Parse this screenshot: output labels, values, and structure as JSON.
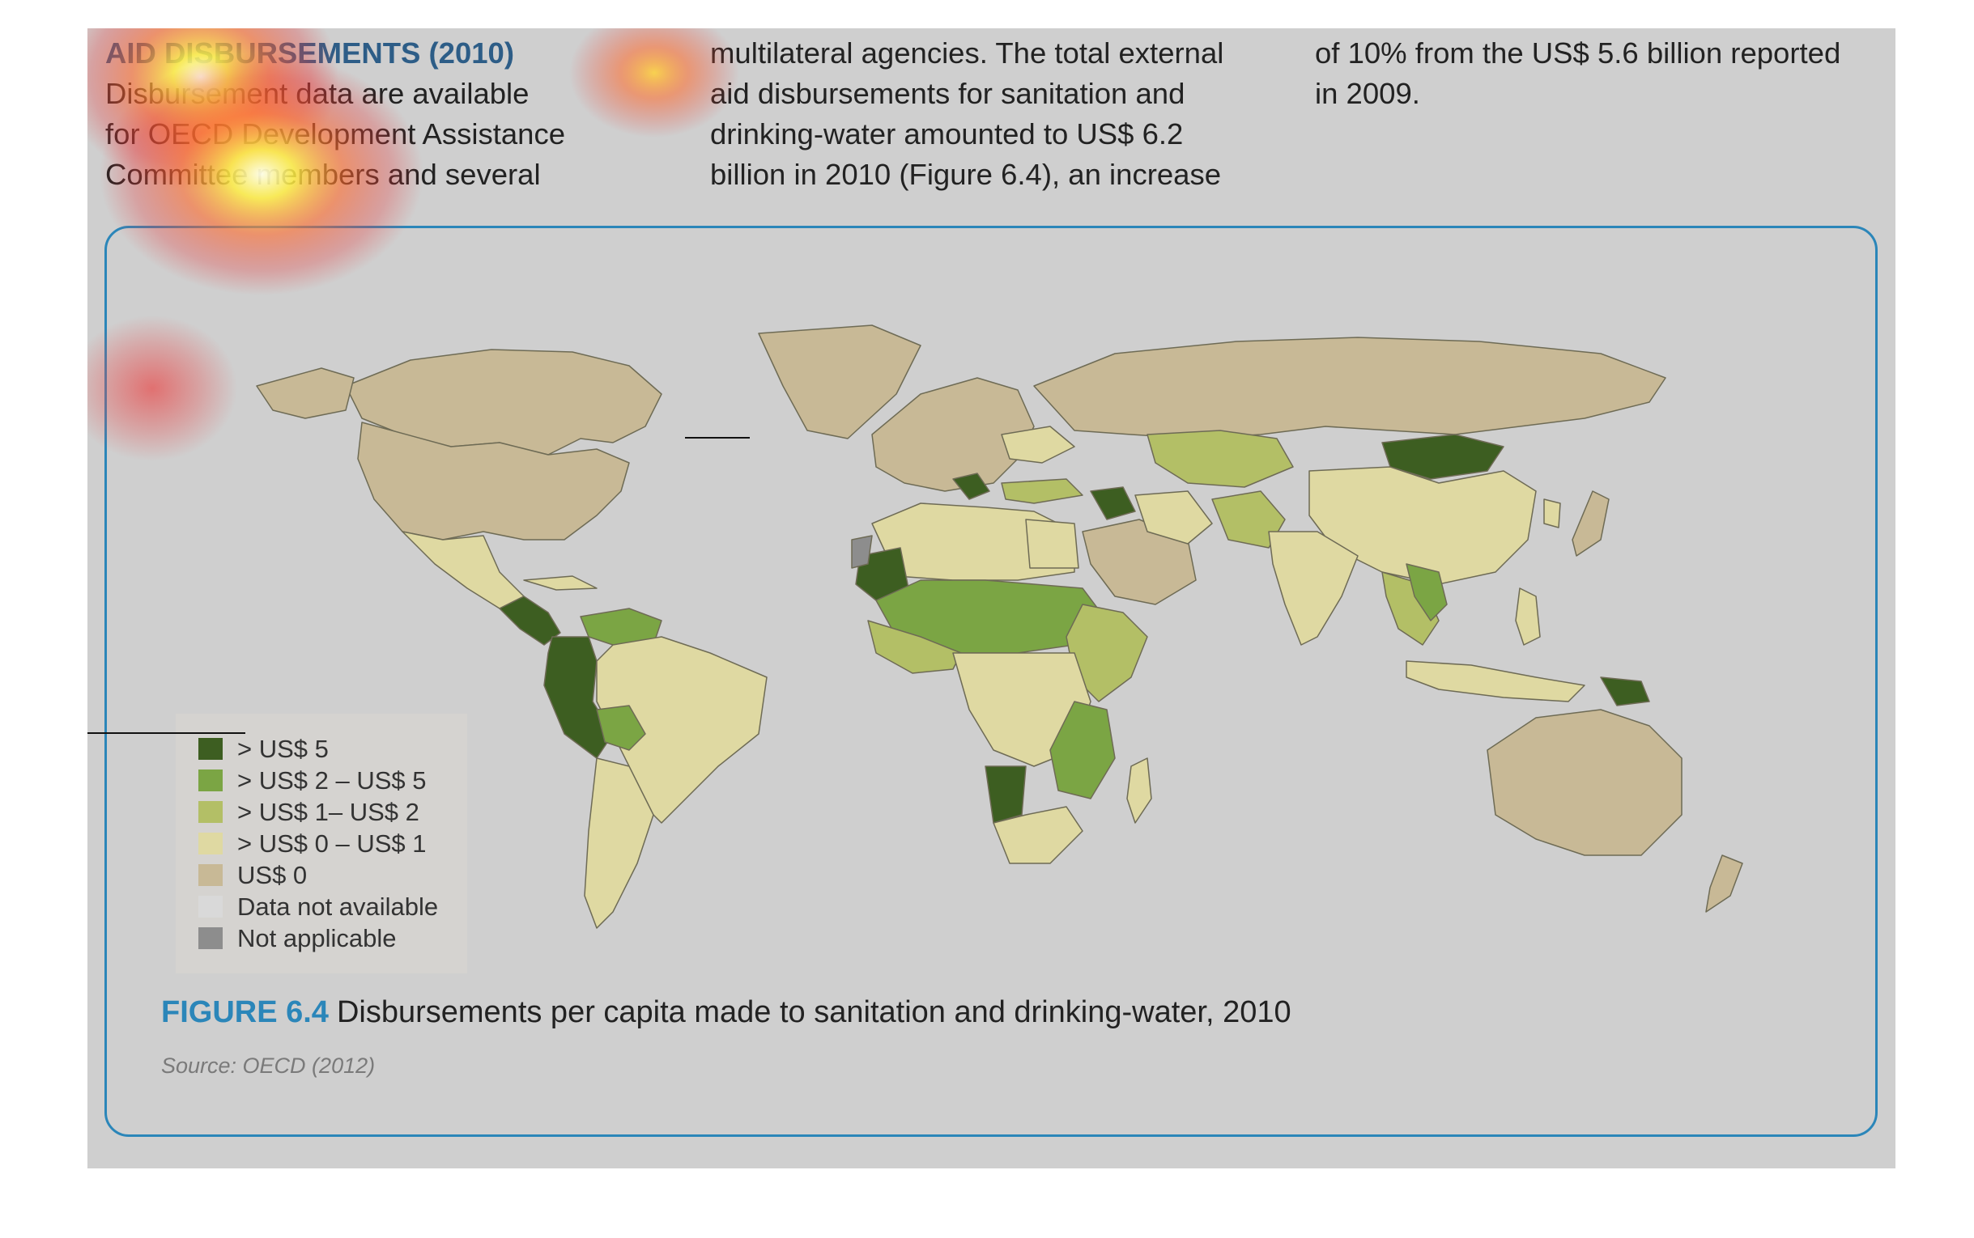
{
  "article": {
    "heading": "AID DISBURSEMENTS (2010)",
    "column1": [
      "Disbursement data are available",
      "for OECD Development Assistance",
      "Committee members and several"
    ],
    "column2": [
      "multilateral agencies. The total external",
      "aid disbursements for sanitation and",
      "drinking-water amounted to US$ 6.2",
      "billion in 2010 (Figure 6.4), an increase"
    ],
    "column3": [
      "of 10% from the US$ 5.6 billion reported",
      "in 2009."
    ]
  },
  "figure": {
    "label": "FIGURE 6.4",
    "title": "Disbursements per capita made to sanitation and drinking-water, 2010",
    "source": "Source: OECD (2012)"
  },
  "legend": {
    "items": [
      {
        "label": "> US$ 5",
        "color": "#3d5e21"
      },
      {
        "label": "> US$ 2 – US$ 5",
        "color": "#7ba544"
      },
      {
        "label": "> US$ 1– US$ 2",
        "color": "#b3bf66"
      },
      {
        "label": "> US$ 0 – US$ 1",
        "color": "#dfd9a2"
      },
      {
        "label": "US$ 0",
        "color": "#c8b996"
      },
      {
        "label": "Data not available",
        "color": "#d9d9d9"
      },
      {
        "label": "Not applicable",
        "color": "#8d8d8d"
      }
    ]
  },
  "colors": {
    "ocean": "#d2d2d2",
    "border": "#6e6b55",
    "accent": "#2b86b9",
    "heading": "#2d5d87"
  }
}
